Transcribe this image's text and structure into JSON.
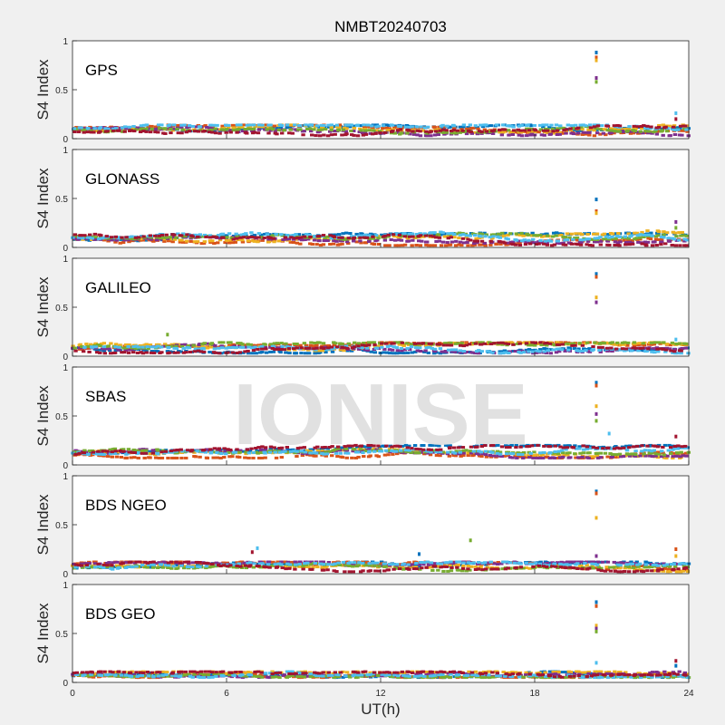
{
  "figure": {
    "title": "NMBT20240703",
    "xlabel": "UT(h)",
    "watermark": "IONISE"
  },
  "colors": {
    "background": "#f0f0f0",
    "axes_bg": "#ffffff",
    "axis": "#262626",
    "watermark": "#dcdcdc",
    "series": [
      "#0072BD",
      "#D95319",
      "#EDB120",
      "#7E2F8E",
      "#77AC30",
      "#4DBEEE",
      "#A2142F"
    ]
  },
  "chart_data": [
    {
      "type": "scatter",
      "label": "GPS",
      "ylabel": "S4 Index",
      "xlim": [
        0,
        24
      ],
      "ylim": [
        0,
        1
      ],
      "xticks": [
        0,
        6,
        12,
        18,
        24
      ],
      "yticks": [
        0,
        0.5,
        1
      ],
      "ytick_labels": [
        "0",
        "0.5",
        "1"
      ],
      "xtick_labels": [],
      "baseline_range": [
        0.03,
        0.14
      ],
      "spikes": [
        {
          "x": 20.4,
          "y": 0.88
        },
        {
          "x": 20.4,
          "y": 0.83
        },
        {
          "x": 20.4,
          "y": 0.8
        },
        {
          "x": 20.4,
          "y": 0.62
        },
        {
          "x": 20.4,
          "y": 0.58
        },
        {
          "x": 23.5,
          "y": 0.26
        },
        {
          "x": 23.5,
          "y": 0.2
        }
      ]
    },
    {
      "type": "scatter",
      "label": "GLONASS",
      "ylabel": "S4 Index",
      "xlim": [
        0,
        24
      ],
      "ylim": [
        0,
        1
      ],
      "xticks": [
        0,
        6,
        12,
        18,
        24
      ],
      "yticks": [
        0,
        0.5,
        1
      ],
      "ytick_labels": [
        "0",
        "0.5",
        "1"
      ],
      "xtick_labels": [],
      "baseline_range": [
        0.02,
        0.18
      ],
      "spikes": [
        {
          "x": 20.4,
          "y": 0.49
        },
        {
          "x": 20.4,
          "y": 0.37
        },
        {
          "x": 20.4,
          "y": 0.35
        },
        {
          "x": 23.5,
          "y": 0.26
        },
        {
          "x": 23.5,
          "y": 0.2
        }
      ]
    },
    {
      "type": "scatter",
      "label": "GALILEO",
      "ylabel": "S4 Index",
      "xlim": [
        0,
        24
      ],
      "ylim": [
        0,
        1
      ],
      "xticks": [
        0,
        6,
        12,
        18,
        24
      ],
      "yticks": [
        0,
        0.5,
        1
      ],
      "ytick_labels": [
        "0",
        "0.5",
        "1"
      ],
      "xtick_labels": [],
      "baseline_range": [
        0.03,
        0.14
      ],
      "spikes": [
        {
          "x": 20.4,
          "y": 0.84
        },
        {
          "x": 20.4,
          "y": 0.81
        },
        {
          "x": 20.4,
          "y": 0.6
        },
        {
          "x": 20.4,
          "y": 0.55
        },
        {
          "x": 3.7,
          "y": 0.22
        },
        {
          "x": 23.5,
          "y": 0.17
        }
      ]
    },
    {
      "type": "scatter",
      "label": "SBAS",
      "ylabel": "S4 Index",
      "xlim": [
        0,
        24
      ],
      "ylim": [
        0,
        1
      ],
      "xticks": [
        0,
        6,
        12,
        18,
        24
      ],
      "yticks": [
        0,
        0.5,
        1
      ],
      "ytick_labels": [
        "0",
        "0.5",
        "1"
      ],
      "xtick_labels": [],
      "baseline_range": [
        0.07,
        0.2
      ],
      "spikes": [
        {
          "x": 20.4,
          "y": 0.84
        },
        {
          "x": 20.4,
          "y": 0.81
        },
        {
          "x": 20.4,
          "y": 0.6
        },
        {
          "x": 20.4,
          "y": 0.52
        },
        {
          "x": 20.4,
          "y": 0.45
        },
        {
          "x": 20.9,
          "y": 0.32
        },
        {
          "x": 23.5,
          "y": 0.29
        }
      ]
    },
    {
      "type": "scatter",
      "label": "BDS NGEO",
      "ylabel": "S4 Index",
      "xlim": [
        0,
        24
      ],
      "ylim": [
        0,
        1
      ],
      "xticks": [
        0,
        6,
        12,
        18,
        24
      ],
      "yticks": [
        0,
        0.5,
        1
      ],
      "ytick_labels": [
        "0",
        "0.5",
        "1"
      ],
      "xtick_labels": [],
      "baseline_range": [
        0.02,
        0.12
      ],
      "spikes": [
        {
          "x": 20.4,
          "y": 0.84
        },
        {
          "x": 20.4,
          "y": 0.82
        },
        {
          "x": 20.4,
          "y": 0.57
        },
        {
          "x": 20.4,
          "y": 0.18
        },
        {
          "x": 15.5,
          "y": 0.34
        },
        {
          "x": 7.2,
          "y": 0.26
        },
        {
          "x": 7.0,
          "y": 0.22
        },
        {
          "x": 13.5,
          "y": 0.2
        },
        {
          "x": 23.5,
          "y": 0.25
        },
        {
          "x": 23.5,
          "y": 0.18
        }
      ]
    },
    {
      "type": "scatter",
      "label": "BDS GEO",
      "ylabel": "S4 Index",
      "xlim": [
        0,
        24
      ],
      "ylim": [
        0,
        1
      ],
      "xticks": [
        0,
        6,
        12,
        18,
        24
      ],
      "yticks": [
        0,
        0.5,
        1
      ],
      "ytick_labels": [
        "0",
        "0.5",
        "1"
      ],
      "xtick_labels": [
        "0",
        "6",
        "12",
        "18",
        "24"
      ],
      "baseline_range": [
        0.05,
        0.11
      ],
      "spikes": [
        {
          "x": 20.4,
          "y": 0.82
        },
        {
          "x": 20.4,
          "y": 0.78
        },
        {
          "x": 20.4,
          "y": 0.58
        },
        {
          "x": 20.4,
          "y": 0.55
        },
        {
          "x": 20.4,
          "y": 0.52
        },
        {
          "x": 20.4,
          "y": 0.2
        },
        {
          "x": 23.5,
          "y": 0.22
        },
        {
          "x": 23.5,
          "y": 0.17
        }
      ]
    }
  ]
}
